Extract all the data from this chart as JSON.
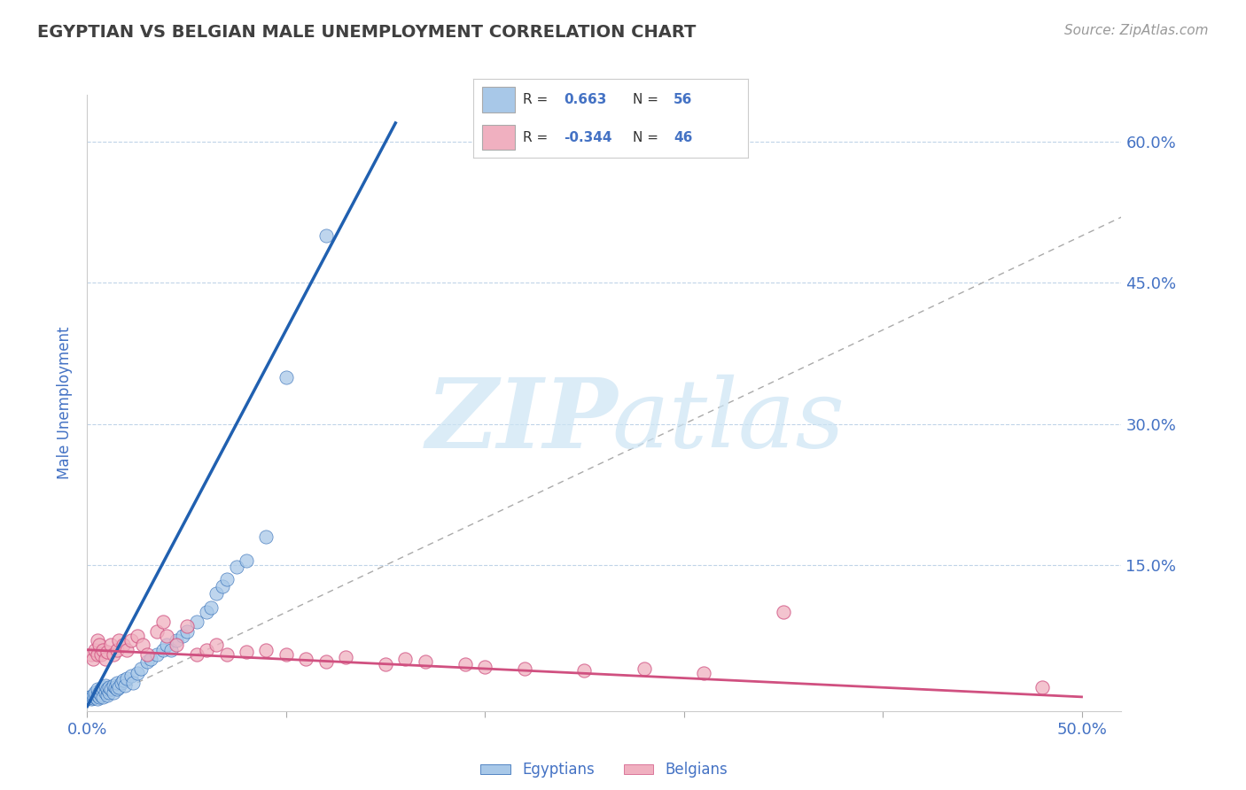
{
  "title": "EGYPTIAN VS BELGIAN MALE UNEMPLOYMENT CORRELATION CHART",
  "source": "Source: ZipAtlas.com",
  "ylabel": "Male Unemployment",
  "xlim": [
    0.0,
    0.52
  ],
  "ylim": [
    -0.005,
    0.65
  ],
  "yticks": [
    0.0,
    0.15,
    0.3,
    0.45,
    0.6
  ],
  "ytick_labels": [
    "",
    "15.0%",
    "30.0%",
    "45.0%",
    "60.0%"
  ],
  "xticks": [
    0.0,
    0.1,
    0.2,
    0.3,
    0.4,
    0.5
  ],
  "xtick_labels": [
    "0.0%",
    "",
    "",
    "",
    "",
    "50.0%"
  ],
  "legend_labels": [
    "Egyptians",
    "Belgians"
  ],
  "blue_color": "#a8c8e8",
  "pink_color": "#f0b0c0",
  "blue_line_color": "#2060b0",
  "pink_line_color": "#d05080",
  "diagonal_color": "#aaaaaa",
  "r_blue": "0.663",
  "n_blue": "56",
  "r_pink": "-0.344",
  "n_pink": "46",
  "legend_text_color": "#4472c4",
  "axis_label_color": "#4472c4",
  "title_color": "#404040",
  "egyptian_x": [
    0.001,
    0.002,
    0.003,
    0.003,
    0.004,
    0.004,
    0.005,
    0.005,
    0.005,
    0.006,
    0.006,
    0.007,
    0.007,
    0.008,
    0.008,
    0.009,
    0.009,
    0.01,
    0.01,
    0.011,
    0.011,
    0.012,
    0.013,
    0.013,
    0.014,
    0.015,
    0.015,
    0.016,
    0.017,
    0.018,
    0.019,
    0.02,
    0.022,
    0.023,
    0.025,
    0.027,
    0.03,
    0.032,
    0.035,
    0.038,
    0.04,
    0.042,
    0.045,
    0.048,
    0.05,
    0.055,
    0.06,
    0.062,
    0.065,
    0.068,
    0.07,
    0.075,
    0.08,
    0.09,
    0.1,
    0.12
  ],
  "egyptian_y": [
    0.01,
    0.008,
    0.009,
    0.012,
    0.01,
    0.015,
    0.008,
    0.012,
    0.018,
    0.01,
    0.015,
    0.012,
    0.018,
    0.01,
    0.02,
    0.015,
    0.022,
    0.012,
    0.018,
    0.015,
    0.02,
    0.018,
    0.015,
    0.022,
    0.02,
    0.018,
    0.025,
    0.02,
    0.025,
    0.028,
    0.022,
    0.03,
    0.032,
    0.025,
    0.035,
    0.04,
    0.048,
    0.05,
    0.055,
    0.06,
    0.065,
    0.06,
    0.07,
    0.075,
    0.08,
    0.09,
    0.1,
    0.105,
    0.12,
    0.128,
    0.135,
    0.148,
    0.155,
    0.18,
    0.35,
    0.5
  ],
  "belgian_x": [
    0.002,
    0.003,
    0.004,
    0.005,
    0.005,
    0.006,
    0.007,
    0.008,
    0.009,
    0.01,
    0.012,
    0.013,
    0.015,
    0.016,
    0.018,
    0.02,
    0.022,
    0.025,
    0.028,
    0.03,
    0.035,
    0.038,
    0.04,
    0.045,
    0.05,
    0.055,
    0.06,
    0.065,
    0.07,
    0.08,
    0.09,
    0.1,
    0.11,
    0.12,
    0.13,
    0.15,
    0.16,
    0.17,
    0.19,
    0.2,
    0.22,
    0.25,
    0.28,
    0.31,
    0.35,
    0.48
  ],
  "belgian_y": [
    0.055,
    0.05,
    0.06,
    0.055,
    0.07,
    0.065,
    0.055,
    0.06,
    0.05,
    0.058,
    0.065,
    0.055,
    0.06,
    0.07,
    0.065,
    0.06,
    0.07,
    0.075,
    0.065,
    0.055,
    0.08,
    0.09,
    0.075,
    0.065,
    0.085,
    0.055,
    0.06,
    0.065,
    0.055,
    0.058,
    0.06,
    0.055,
    0.05,
    0.048,
    0.052,
    0.045,
    0.05,
    0.048,
    0.045,
    0.042,
    0.04,
    0.038,
    0.04,
    0.035,
    0.1,
    0.02
  ],
  "blue_trend_x": [
    0.0,
    0.155
  ],
  "blue_trend_y": [
    0.0,
    0.62
  ],
  "pink_trend_x": [
    0.0,
    0.5
  ],
  "pink_trend_y": [
    0.06,
    0.01
  ]
}
